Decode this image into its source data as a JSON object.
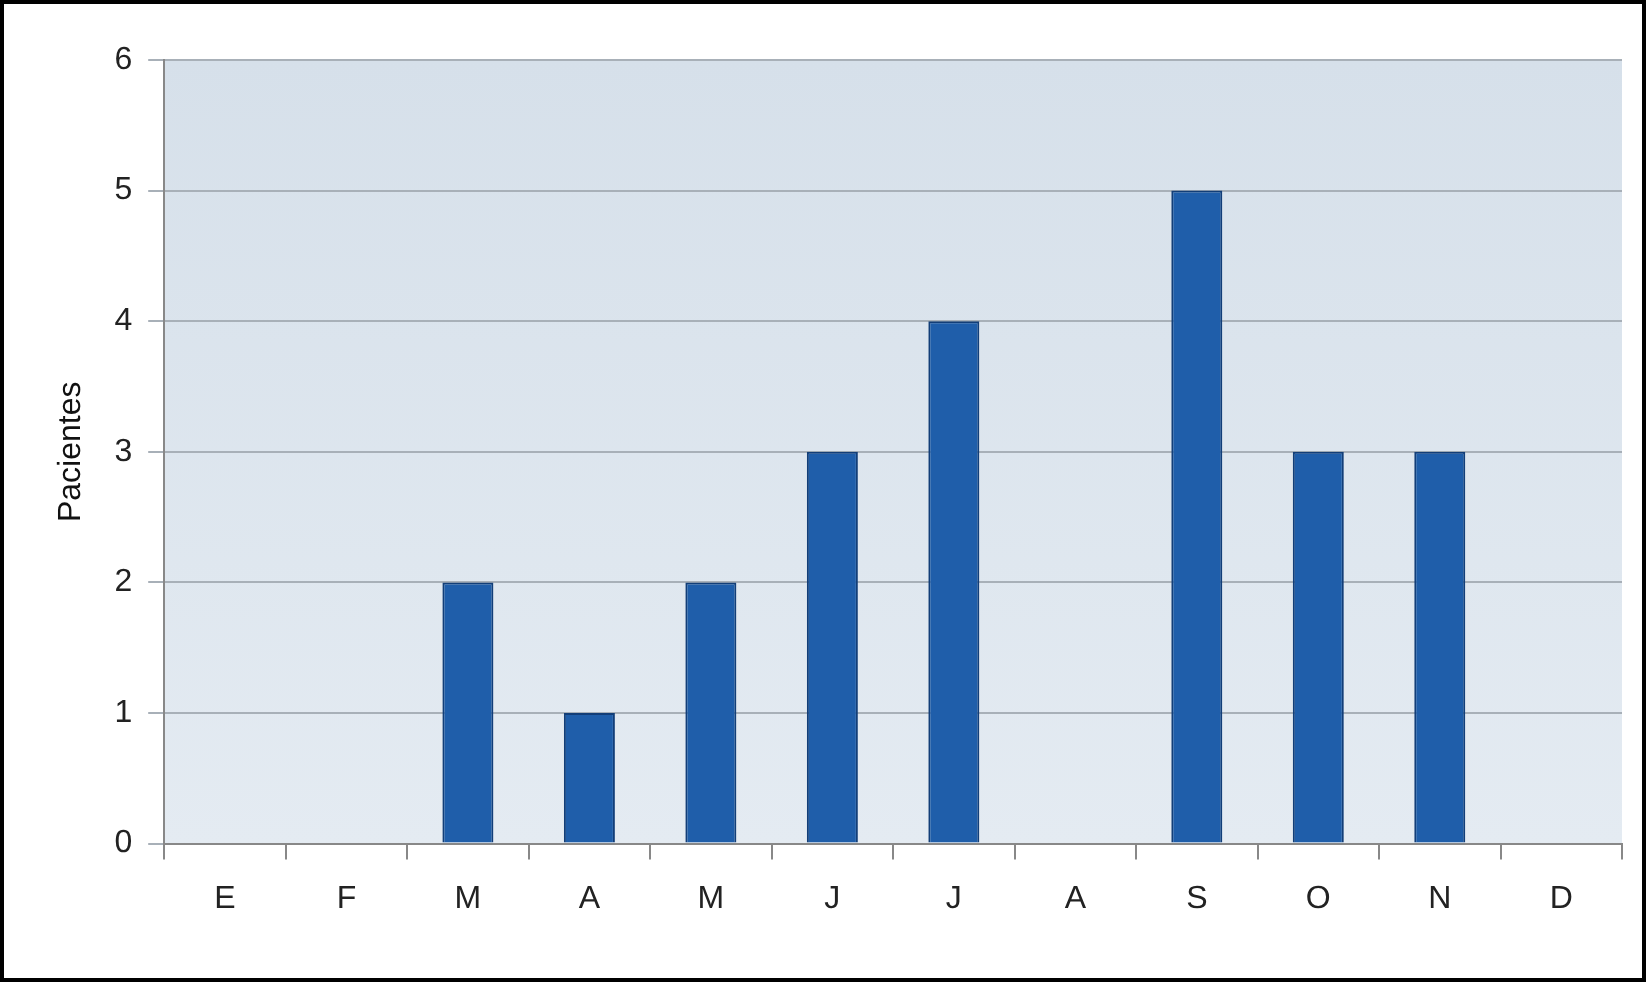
{
  "chart_data": {
    "type": "bar",
    "ylabel": "Pacientes",
    "categories": [
      "E",
      "F",
      "M",
      "A",
      "M",
      "J",
      "J",
      "A",
      "S",
      "O",
      "N",
      "D"
    ],
    "values": [
      0,
      0,
      2,
      1,
      2,
      3,
      4,
      0,
      5,
      3,
      3,
      0
    ],
    "color": "#1f5eaa",
    "ylim": [
      0,
      6
    ],
    "yticks": [
      0,
      1,
      2,
      3,
      4,
      5,
      6
    ],
    "grid": "y",
    "legend": false
  }
}
